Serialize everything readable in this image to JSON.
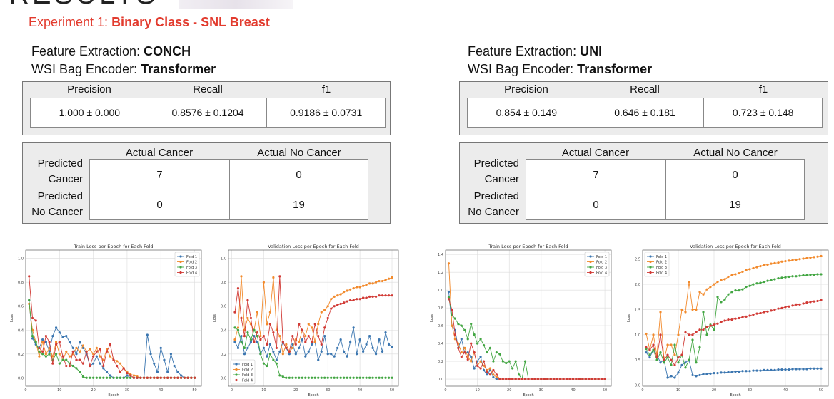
{
  "heading": "RESULTS",
  "subtitle": {
    "prefix": "Experiment 1: ",
    "bold": "Binary Class - SNL Breast"
  },
  "left": {
    "fe_label": "Feature Extraction: ",
    "fe_value": "CONCH",
    "enc_label": "WSI Bag Encoder: ",
    "enc_value": "Transformer",
    "metrics": {
      "headers": [
        "Precision",
        "Recall",
        "f1"
      ],
      "values": [
        "1.000 ± 0.000",
        "0.8576 ± 0.1204",
        "0.9186 ± 0.0731"
      ]
    },
    "confusion": {
      "col_headers": [
        "Actual Cancer",
        "Actual No Cancer"
      ],
      "row_headers": [
        [
          "Predicted",
          "Cancer"
        ],
        [
          "Predicted",
          "No Cancer"
        ]
      ],
      "cells": [
        [
          "7",
          "0"
        ],
        [
          "0",
          "19"
        ]
      ]
    }
  },
  "right": {
    "fe_label": "Feature Extraction: ",
    "fe_value": "UNI",
    "enc_label": "WSI Bag Encoder: ",
    "enc_value": "Transformer",
    "metrics": {
      "headers": [
        "Precision",
        "Recall",
        "f1"
      ],
      "values": [
        "0.854 ± 0.149",
        "0.646 ± 0.181",
        "0.723 ± 0.148"
      ]
    },
    "confusion": {
      "col_headers": [
        "Actual Cancer",
        "Actual No Cancer"
      ],
      "row_headers": [
        [
          "Predicted",
          "Cancer"
        ],
        [
          "Predicted",
          "No Cancer"
        ]
      ],
      "cells": [
        [
          "7",
          "0"
        ],
        [
          "0",
          "19"
        ]
      ]
    }
  },
  "colors": {
    "fold1": "#3b76b0",
    "fold2": "#f28a2c",
    "fold3": "#42a642",
    "fold4": "#d13a35",
    "accent": "#e23b2e"
  },
  "chart_data": [
    {
      "type": "line",
      "title": "Train Loss per Epoch for Each Fold",
      "xlabel": "Epoch",
      "ylabel": "Loss",
      "xlim": [
        0,
        52
      ],
      "ylim": [
        -0.07,
        1.07
      ],
      "xticks": [
        0,
        10,
        20,
        30,
        40,
        50
      ],
      "yticks": [
        0.0,
        0.2,
        0.4,
        0.6,
        0.8,
        1.0
      ],
      "legend": "top-right",
      "grid": true,
      "series": [
        {
          "name": "Fold 1",
          "values": [
            0.65,
            0.33,
            0.28,
            0.25,
            0.32,
            0.3,
            0.22,
            0.35,
            0.42,
            0.38,
            0.34,
            0.35,
            0.3,
            0.25,
            0.2,
            0.3,
            0.25,
            0.2,
            0.1,
            0.12,
            0.18,
            0.12,
            0.08,
            0.05,
            0.02,
            0.0,
            0.0,
            0.0,
            0.0,
            0.02,
            0.0,
            0.0,
            0.0,
            0.0,
            0.0,
            0.36,
            0.2,
            0.12,
            0.05,
            0.25,
            0.15,
            0.05,
            0.2,
            0.1,
            0.05,
            0.02,
            0.0,
            0.0,
            0.0,
            0.0
          ]
        },
        {
          "name": "Fold 2",
          "values": [
            0.62,
            0.4,
            0.3,
            0.18,
            0.3,
            0.2,
            0.25,
            0.18,
            0.3,
            0.2,
            0.15,
            0.22,
            0.18,
            0.2,
            0.25,
            0.22,
            0.27,
            0.22,
            0.24,
            0.2,
            0.25,
            0.18,
            0.15,
            0.24,
            0.18,
            0.15,
            0.14,
            0.12,
            0.08,
            0.05,
            0.03,
            0.02,
            0.01,
            0.0,
            0.0,
            0.0,
            0.0,
            0.0,
            0.0,
            0.0,
            0.0,
            0.0,
            0.0,
            0.0,
            0.0,
            0.0,
            0.0,
            0.0,
            0.0,
            0.0
          ]
        },
        {
          "name": "Fold 3",
          "values": [
            0.65,
            0.35,
            0.3,
            0.22,
            0.2,
            0.18,
            0.2,
            0.15,
            0.2,
            0.12,
            0.15,
            0.15,
            0.12,
            0.1,
            0.08,
            0.05,
            0.01,
            0.0,
            0.0,
            0.0,
            0.0,
            0.0,
            0.0,
            0.0,
            0.0,
            0.0,
            0.0,
            0.0,
            0.0,
            0.0,
            0.0,
            0.0,
            0.0,
            0.0,
            0.0,
            0.0,
            0.0,
            0.0,
            0.0,
            0.0,
            0.0,
            0.0,
            0.0,
            0.0,
            0.0,
            0.0,
            0.0,
            0.0,
            0.0,
            0.0
          ]
        },
        {
          "name": "Fold 4",
          "values": [
            0.85,
            0.5,
            0.48,
            0.25,
            0.22,
            0.35,
            0.3,
            0.12,
            0.28,
            0.3,
            0.18,
            0.1,
            0.1,
            0.22,
            0.15,
            0.15,
            0.12,
            0.22,
            0.1,
            0.18,
            0.22,
            0.24,
            0.1,
            0.22,
            0.28,
            0.15,
            0.1,
            0.05,
            0.08,
            0.04,
            0.02,
            0.0,
            0.0,
            0.0,
            0.0,
            0.0,
            0.0,
            0.0,
            0.0,
            0.0,
            0.0,
            0.0,
            0.0,
            0.0,
            0.0,
            0.0,
            0.0,
            0.0,
            0.0,
            0.0
          ]
        }
      ]
    },
    {
      "type": "line",
      "title": "Validation Loss per Epoch for Each Fold",
      "xlabel": "Epoch",
      "ylabel": "Loss",
      "xlim": [
        -1,
        52
      ],
      "ylim": [
        -0.07,
        1.07
      ],
      "xticks": [
        0,
        10,
        20,
        30,
        40,
        50
      ],
      "yticks": [
        0.0,
        0.2,
        0.4,
        0.6,
        0.8,
        1.0
      ],
      "legend": "bottom-left",
      "grid": true,
      "series": [
        {
          "name": "Fold 1",
          "values": [
            0.3,
            0.25,
            0.35,
            0.2,
            0.25,
            0.3,
            0.35,
            0.3,
            0.2,
            0.25,
            0.18,
            0.28,
            0.22,
            0.15,
            0.22,
            0.3,
            0.25,
            0.2,
            0.28,
            0.2,
            0.25,
            0.32,
            0.18,
            0.22,
            0.28,
            0.3,
            0.15,
            0.22,
            0.35,
            0.2,
            0.2,
            0.18,
            0.25,
            0.32,
            0.22,
            0.18,
            0.3,
            0.42,
            0.2,
            0.32,
            0.22,
            0.28,
            0.35,
            0.25,
            0.2,
            0.32,
            0.22,
            0.38,
            0.28,
            0.26
          ]
        },
        {
          "name": "Fold 2",
          "values": [
            0.32,
            0.42,
            0.85,
            0.4,
            0.5,
            0.45,
            0.4,
            0.55,
            0.35,
            0.8,
            0.45,
            0.55,
            0.84,
            0.4,
            0.35,
            0.2,
            0.28,
            0.22,
            0.25,
            0.32,
            0.3,
            0.4,
            0.35,
            0.45,
            0.42,
            0.3,
            0.45,
            0.55,
            0.57,
            0.6,
            0.66,
            0.68,
            0.69,
            0.7,
            0.72,
            0.73,
            0.74,
            0.75,
            0.76,
            0.76,
            0.77,
            0.78,
            0.79,
            0.79,
            0.8,
            0.81,
            0.81,
            0.82,
            0.83,
            0.84
          ]
        },
        {
          "name": "Fold 3",
          "values": [
            0.42,
            0.4,
            0.3,
            0.25,
            0.38,
            0.32,
            0.4,
            0.35,
            0.2,
            0.12,
            0.1,
            0.2,
            0.15,
            0.12,
            0.02,
            0.01,
            0.0,
            0.0,
            0.0,
            0.0,
            0.0,
            0.0,
            0.0,
            0.0,
            0.0,
            0.0,
            0.0,
            0.0,
            0.0,
            0.0,
            0.0,
            0.0,
            0.0,
            0.0,
            0.0,
            0.0,
            0.0,
            0.0,
            0.0,
            0.0,
            0.0,
            0.0,
            0.0,
            0.0,
            0.0,
            0.0,
            0.0,
            0.0,
            0.0,
            0.0
          ]
        },
        {
          "name": "Fold 4",
          "values": [
            0.55,
            0.75,
            0.5,
            0.35,
            0.65,
            0.5,
            0.3,
            0.38,
            0.32,
            0.35,
            0.28,
            0.45,
            0.38,
            0.25,
            0.85,
            0.3,
            0.25,
            0.22,
            0.35,
            0.28,
            0.45,
            0.4,
            0.3,
            0.35,
            0.3,
            0.45,
            0.35,
            0.28,
            0.42,
            0.5,
            0.58,
            0.6,
            0.61,
            0.62,
            0.63,
            0.64,
            0.65,
            0.65,
            0.66,
            0.66,
            0.67,
            0.67,
            0.68,
            0.68,
            0.68,
            0.69,
            0.69,
            0.69,
            0.69,
            0.69
          ]
        }
      ]
    },
    {
      "type": "line",
      "title": "Train Loss per Epoch for Each Fold",
      "xlabel": "Epoch",
      "ylabel": "Loss",
      "xlim": [
        0,
        52
      ],
      "ylim": [
        -0.08,
        1.45
      ],
      "xticks": [
        0,
        10,
        20,
        30,
        40,
        50
      ],
      "yticks": [
        0.0,
        0.2,
        0.4,
        0.6,
        0.8,
        1.0,
        1.2,
        1.4
      ],
      "legend": "top-right",
      "grid": true,
      "series": [
        {
          "name": "Fold 1",
          "values": [
            0.98,
            0.6,
            0.55,
            0.35,
            0.45,
            0.3,
            0.3,
            0.25,
            0.12,
            0.2,
            0.25,
            0.1,
            0.05,
            0.1,
            0.02,
            0.0,
            0.0,
            0.0,
            0.0,
            0.0,
            0.0,
            0.0,
            0.0,
            0.0,
            0.0,
            0.0,
            0.0,
            0.0,
            0.0,
            0.0,
            0.0,
            0.0,
            0.0,
            0.0,
            0.0,
            0.0,
            0.0,
            0.0,
            0.0,
            0.0,
            0.0,
            0.0,
            0.0,
            0.0,
            0.0,
            0.0,
            0.0,
            0.0,
            0.0,
            0.0
          ]
        },
        {
          "name": "Fold 2",
          "values": [
            1.3,
            0.6,
            0.45,
            0.4,
            0.3,
            0.35,
            0.25,
            0.2,
            0.3,
            0.15,
            0.2,
            0.15,
            0.1,
            0.12,
            0.05,
            0.02,
            0.0,
            0.0,
            0.0,
            0.0,
            0.0,
            0.0,
            0.0,
            0.0,
            0.0,
            0.0,
            0.0,
            0.0,
            0.0,
            0.0,
            0.0,
            0.0,
            0.0,
            0.0,
            0.0,
            0.0,
            0.0,
            0.0,
            0.0,
            0.0,
            0.0,
            0.0,
            0.0,
            0.0,
            0.0,
            0.0,
            0.0,
            0.0,
            0.0,
            0.0
          ]
        },
        {
          "name": "Fold 3",
          "values": [
            0.92,
            0.72,
            0.68,
            0.62,
            0.6,
            0.55,
            0.45,
            0.62,
            0.5,
            0.4,
            0.45,
            0.38,
            0.3,
            0.35,
            0.2,
            0.3,
            0.28,
            0.2,
            0.18,
            0.2,
            0.12,
            0.2,
            0.05,
            0.0,
            0.2,
            0.0,
            0.0,
            0.0,
            0.0,
            0.0,
            0.0,
            0.0,
            0.0,
            0.0,
            0.0,
            0.0,
            0.0,
            0.0,
            0.0,
            0.0,
            0.0,
            0.0,
            0.0,
            0.0,
            0.0,
            0.0,
            0.0,
            0.0,
            0.0,
            0.0
          ]
        },
        {
          "name": "Fold 4",
          "values": [
            0.9,
            0.78,
            0.5,
            0.35,
            0.25,
            0.3,
            0.22,
            0.4,
            0.3,
            0.15,
            0.12,
            0.2,
            0.08,
            0.05,
            0.1,
            0.05,
            0.0,
            0.0,
            0.0,
            0.0,
            0.0,
            0.0,
            0.0,
            0.0,
            0.0,
            0.0,
            0.0,
            0.0,
            0.0,
            0.0,
            0.0,
            0.0,
            0.0,
            0.0,
            0.0,
            0.0,
            0.0,
            0.0,
            0.0,
            0.0,
            0.0,
            0.0,
            0.0,
            0.0,
            0.0,
            0.0,
            0.0,
            0.0,
            0.0,
            0.0
          ]
        }
      ]
    },
    {
      "type": "line",
      "title": "Validation Loss per Epoch for Each Fold",
      "xlabel": "Epoch",
      "ylabel": "Loss",
      "xlim": [
        0,
        52
      ],
      "ylim": [
        -0.02,
        2.68
      ],
      "xticks": [
        0,
        10,
        20,
        30,
        40,
        50
      ],
      "yticks": [
        0.0,
        0.5,
        1.0,
        1.5,
        2.0,
        2.5
      ],
      "legend": "top-left",
      "grid": true,
      "series": [
        {
          "name": "Fold 1",
          "values": [
            0.65,
            0.55,
            0.7,
            0.6,
            0.45,
            0.5,
            0.15,
            0.18,
            0.15,
            0.25,
            0.4,
            0.45,
            0.5,
            0.2,
            0.18,
            0.2,
            0.22,
            0.22,
            0.23,
            0.24,
            0.24,
            0.25,
            0.25,
            0.26,
            0.26,
            0.27,
            0.27,
            0.28,
            0.28,
            0.28,
            0.29,
            0.29,
            0.29,
            0.3,
            0.3,
            0.3,
            0.3,
            0.31,
            0.31,
            0.31,
            0.31,
            0.32,
            0.32,
            0.32,
            0.32,
            0.32,
            0.33,
            0.33,
            0.33,
            0.33
          ]
        },
        {
          "name": "Fold 2",
          "values": [
            1.02,
            0.7,
            1.0,
            0.6,
            1.45,
            0.5,
            0.8,
            0.8,
            0.6,
            1.0,
            1.5,
            1.45,
            2.05,
            1.5,
            1.5,
            1.85,
            1.8,
            1.9,
            1.95,
            2.0,
            2.05,
            2.08,
            2.1,
            2.15,
            2.18,
            2.2,
            2.22,
            2.25,
            2.28,
            2.3,
            2.32,
            2.34,
            2.36,
            2.38,
            2.39,
            2.41,
            2.42,
            2.43,
            2.45,
            2.46,
            2.47,
            2.48,
            2.49,
            2.5,
            2.51,
            2.52,
            2.53,
            2.54,
            2.55,
            2.56
          ]
        },
        {
          "name": "Fold 3",
          "values": [
            0.72,
            0.6,
            0.7,
            0.5,
            0.65,
            0.45,
            0.55,
            0.4,
            0.8,
            0.45,
            0.6,
            0.35,
            0.5,
            0.9,
            0.45,
            0.75,
            1.45,
            1.0,
            1.2,
            1.1,
            1.75,
            1.65,
            1.7,
            1.8,
            1.85,
            1.88,
            1.88,
            1.9,
            1.95,
            1.97,
            2.0,
            2.02,
            2.03,
            2.05,
            2.07,
            2.08,
            2.1,
            2.12,
            2.13,
            2.14,
            2.15,
            2.16,
            2.16,
            2.17,
            2.18,
            2.18,
            2.19,
            2.19,
            2.2,
            2.2
          ]
        },
        {
          "name": "Fold 4",
          "values": [
            0.75,
            0.7,
            0.8,
            0.55,
            1.0,
            0.5,
            0.6,
            0.5,
            0.4,
            0.55,
            0.6,
            1.05,
            1.0,
            1.0,
            1.05,
            1.1,
            1.1,
            1.15,
            1.18,
            1.2,
            1.22,
            1.25,
            1.28,
            1.3,
            1.3,
            1.32,
            1.33,
            1.35,
            1.36,
            1.38,
            1.4,
            1.42,
            1.43,
            1.45,
            1.46,
            1.48,
            1.5,
            1.52,
            1.53,
            1.55,
            1.56,
            1.58,
            1.6,
            1.6,
            1.62,
            1.64,
            1.65,
            1.66,
            1.67,
            1.69
          ]
        }
      ]
    }
  ]
}
